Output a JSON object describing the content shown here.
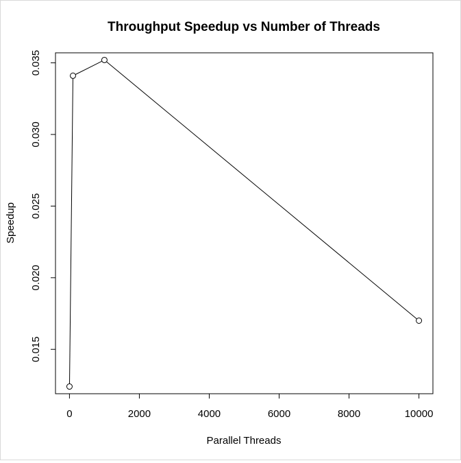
{
  "chart_data": {
    "type": "line",
    "title": "Throughput Speedup vs Number of Threads",
    "xlabel": "Parallel Threads",
    "ylabel": "Speedup",
    "x": [
      1,
      100,
      1000,
      10000
    ],
    "series": [
      {
        "values": [
          0.0124,
          0.0341,
          0.0352,
          0.017
        ]
      }
    ],
    "xlim": [
      -400,
      10400
    ],
    "ylim": [
      0.0119,
      0.0357
    ],
    "xticks": [
      0,
      2000,
      4000,
      6000,
      8000,
      10000
    ],
    "xtick_labels": [
      "0",
      "2000",
      "4000",
      "6000",
      "8000",
      "10000"
    ],
    "yticks": [
      0.015,
      0.02,
      0.025,
      0.03,
      0.035
    ],
    "ytick_labels": [
      "0.015",
      "0.020",
      "0.025",
      "0.030",
      "0.035"
    ],
    "marker": "open-circle",
    "line_color": "#000000",
    "grid": false,
    "legend": "none"
  }
}
